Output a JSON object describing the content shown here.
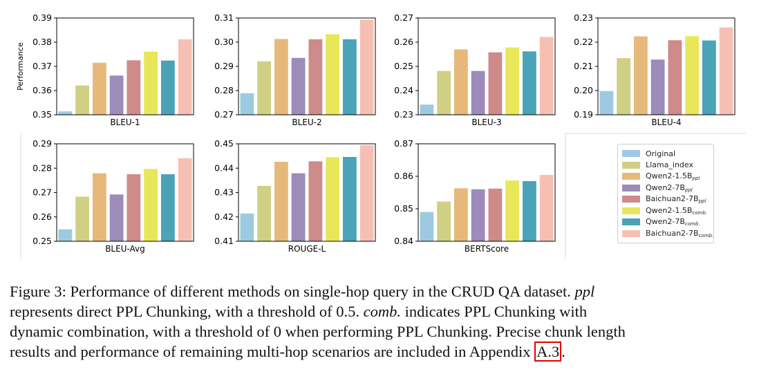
{
  "chart_data": [
    {
      "type": "bar",
      "xlabel": "BLEU-1",
      "ylabel": "Performance",
      "ylim": [
        0.35,
        0.39
      ],
      "yticks": [
        "0.35",
        "0.36",
        "0.37",
        "0.38",
        "0.39"
      ],
      "values": [
        0.3514,
        0.3621,
        0.3715,
        0.3662,
        0.3725,
        0.3761,
        0.3724,
        0.3812
      ]
    },
    {
      "type": "bar",
      "xlabel": "BLEU-2",
      "ylabel": "",
      "ylim": [
        0.27,
        0.31
      ],
      "yticks": [
        "0.27",
        "0.28",
        "0.29",
        "0.30",
        "0.31"
      ],
      "values": [
        0.2789,
        0.2921,
        0.3013,
        0.2935,
        0.3012,
        0.3033,
        0.3012,
        0.3093
      ]
    },
    {
      "type": "bar",
      "xlabel": "BLEU-3",
      "ylabel": "",
      "ylim": [
        0.23,
        0.27
      ],
      "yticks": [
        "0.23",
        "0.24",
        "0.25",
        "0.26",
        "0.27"
      ],
      "values": [
        0.2342,
        0.2481,
        0.257,
        0.2481,
        0.2558,
        0.2578,
        0.2562,
        0.2622
      ]
    },
    {
      "type": "bar",
      "xlabel": "BLEU-4",
      "ylabel": "",
      "ylim": [
        0.19,
        0.23
      ],
      "yticks": [
        "0.19",
        "0.20",
        "0.21",
        "0.22",
        "0.23"
      ],
      "values": [
        0.1998,
        0.2134,
        0.2224,
        0.2128,
        0.2208,
        0.2225,
        0.2207,
        0.2261
      ]
    },
    {
      "type": "bar",
      "xlabel": "BLEU-Avg",
      "ylabel": "",
      "ylim": [
        0.25,
        0.29
      ],
      "yticks": [
        "0.25",
        "0.26",
        "0.27",
        "0.28",
        "0.29"
      ],
      "values": [
        0.2549,
        0.2683,
        0.2779,
        0.2692,
        0.2775,
        0.2797,
        0.2775,
        0.2841
      ]
    },
    {
      "type": "bar",
      "xlabel": "ROUGE-L",
      "ylabel": "",
      "ylim": [
        0.41,
        0.45
      ],
      "yticks": [
        "0.41",
        "0.42",
        "0.43",
        "0.44",
        "0.45"
      ],
      "values": [
        0.4214,
        0.4327,
        0.4426,
        0.4379,
        0.4428,
        0.4445,
        0.4446,
        0.4494
      ]
    },
    {
      "type": "bar",
      "xlabel": "BERTScore",
      "ylabel": "",
      "ylim": [
        0.84,
        0.87
      ],
      "yticks": [
        "0.84",
        "0.85",
        "0.86",
        "0.87"
      ],
      "values": [
        0.849,
        0.8522,
        0.8563,
        0.856,
        0.8562,
        0.8587,
        0.8585,
        0.8604
      ]
    }
  ],
  "series": [
    {
      "name": "Original",
      "sub": "",
      "color": "#9ecae1"
    },
    {
      "name": "Llama_index",
      "sub": "",
      "color": "#cfd084"
    },
    {
      "name": "Qwen2-1.5B",
      "sub": "ppl",
      "color": "#e6b97a"
    },
    {
      "name": "Qwen2-7B",
      "sub": "ppl",
      "color": "#9d8bba"
    },
    {
      "name": "Baichuan2-7B",
      "sub": "ppl",
      "color": "#cf8a8a"
    },
    {
      "name": "Qwen2-1.5B",
      "sub": "comb.",
      "color": "#e8e75a"
    },
    {
      "name": "Qwen2-7B",
      "sub": "comb.",
      "color": "#4aa3b6"
    },
    {
      "name": "Baichuan2-7B",
      "sub": "comb.",
      "color": "#f5c0b3"
    }
  ],
  "caption": {
    "line1_a": "Figure 3: Performance of different methods on single-hop query in the CRUD QA dataset. ",
    "line1_i": "ppl",
    "line2_a": "represents direct PPL Chunking, with a threshold of 0.5. ",
    "line2_i": "comb.",
    "line2_b": " indicates PPL Chunking with",
    "line3": "dynamic combination, with a threshold of 0 when performing PPL Chunking. Precise chunk length",
    "line4_a": "results and performance of remaining multi-hop scenarios are included in Appendix ",
    "line4_ref": "A.3",
    "line4_b": "."
  }
}
